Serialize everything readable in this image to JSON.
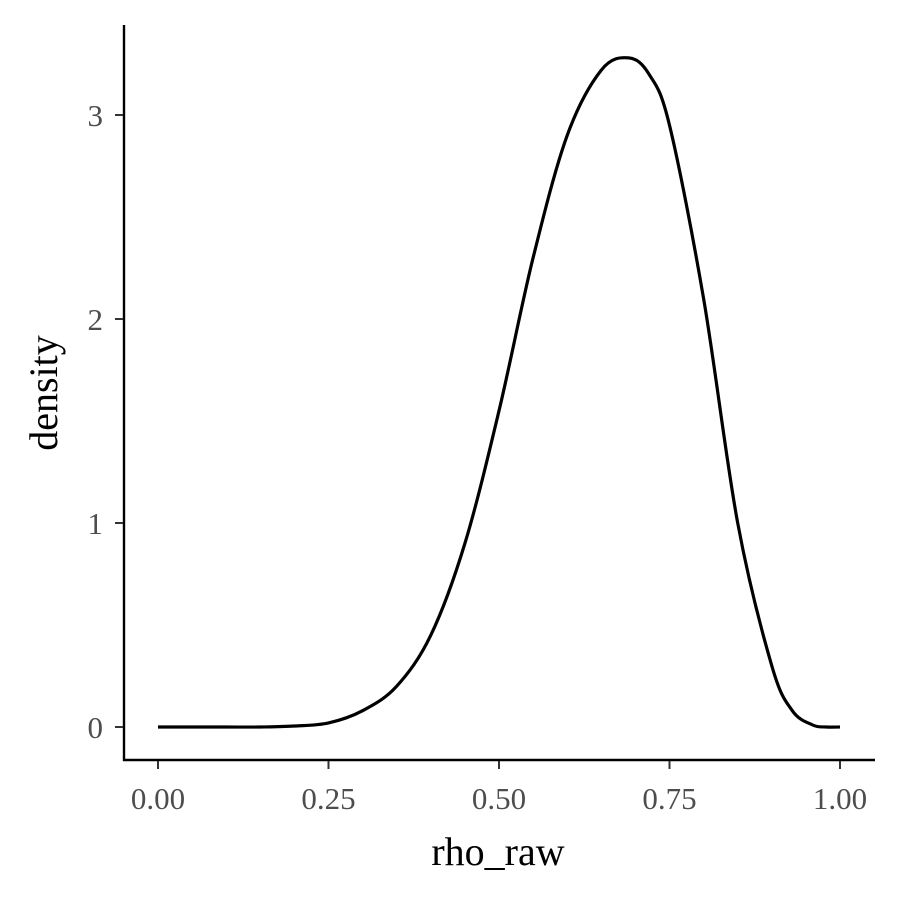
{
  "chart_data": {
    "type": "line",
    "xlabel": "rho_raw",
    "ylabel": "density",
    "xlim": [
      0.0,
      1.0
    ],
    "ylim": [
      0,
      3.28
    ],
    "x_ticks": [
      0.0,
      0.25,
      0.5,
      0.75,
      1.0
    ],
    "x_tick_labels": [
      "0.00",
      "0.25",
      "0.50",
      "0.75",
      "1.00"
    ],
    "y_ticks": [
      0,
      1,
      2,
      3
    ],
    "y_tick_labels": [
      "0",
      "1",
      "2",
      "3"
    ],
    "grid": false,
    "legend": "none",
    "series": [
      {
        "x": [
          0.0,
          0.05,
          0.1,
          0.15,
          0.2,
          0.25,
          0.3,
          0.35,
          0.4,
          0.45,
          0.5,
          0.55,
          0.6,
          0.65,
          0.69,
          0.72,
          0.75,
          0.8,
          0.85,
          0.9,
          0.93,
          0.96,
          0.98,
          1.0
        ],
        "y": [
          0.0,
          0.0,
          0.0,
          0.0,
          0.005,
          0.02,
          0.08,
          0.2,
          0.45,
          0.9,
          1.55,
          2.3,
          2.9,
          3.22,
          3.28,
          3.2,
          2.95,
          2.1,
          1.0,
          0.3,
          0.08,
          0.01,
          0.0,
          0.0
        ]
      }
    ]
  }
}
